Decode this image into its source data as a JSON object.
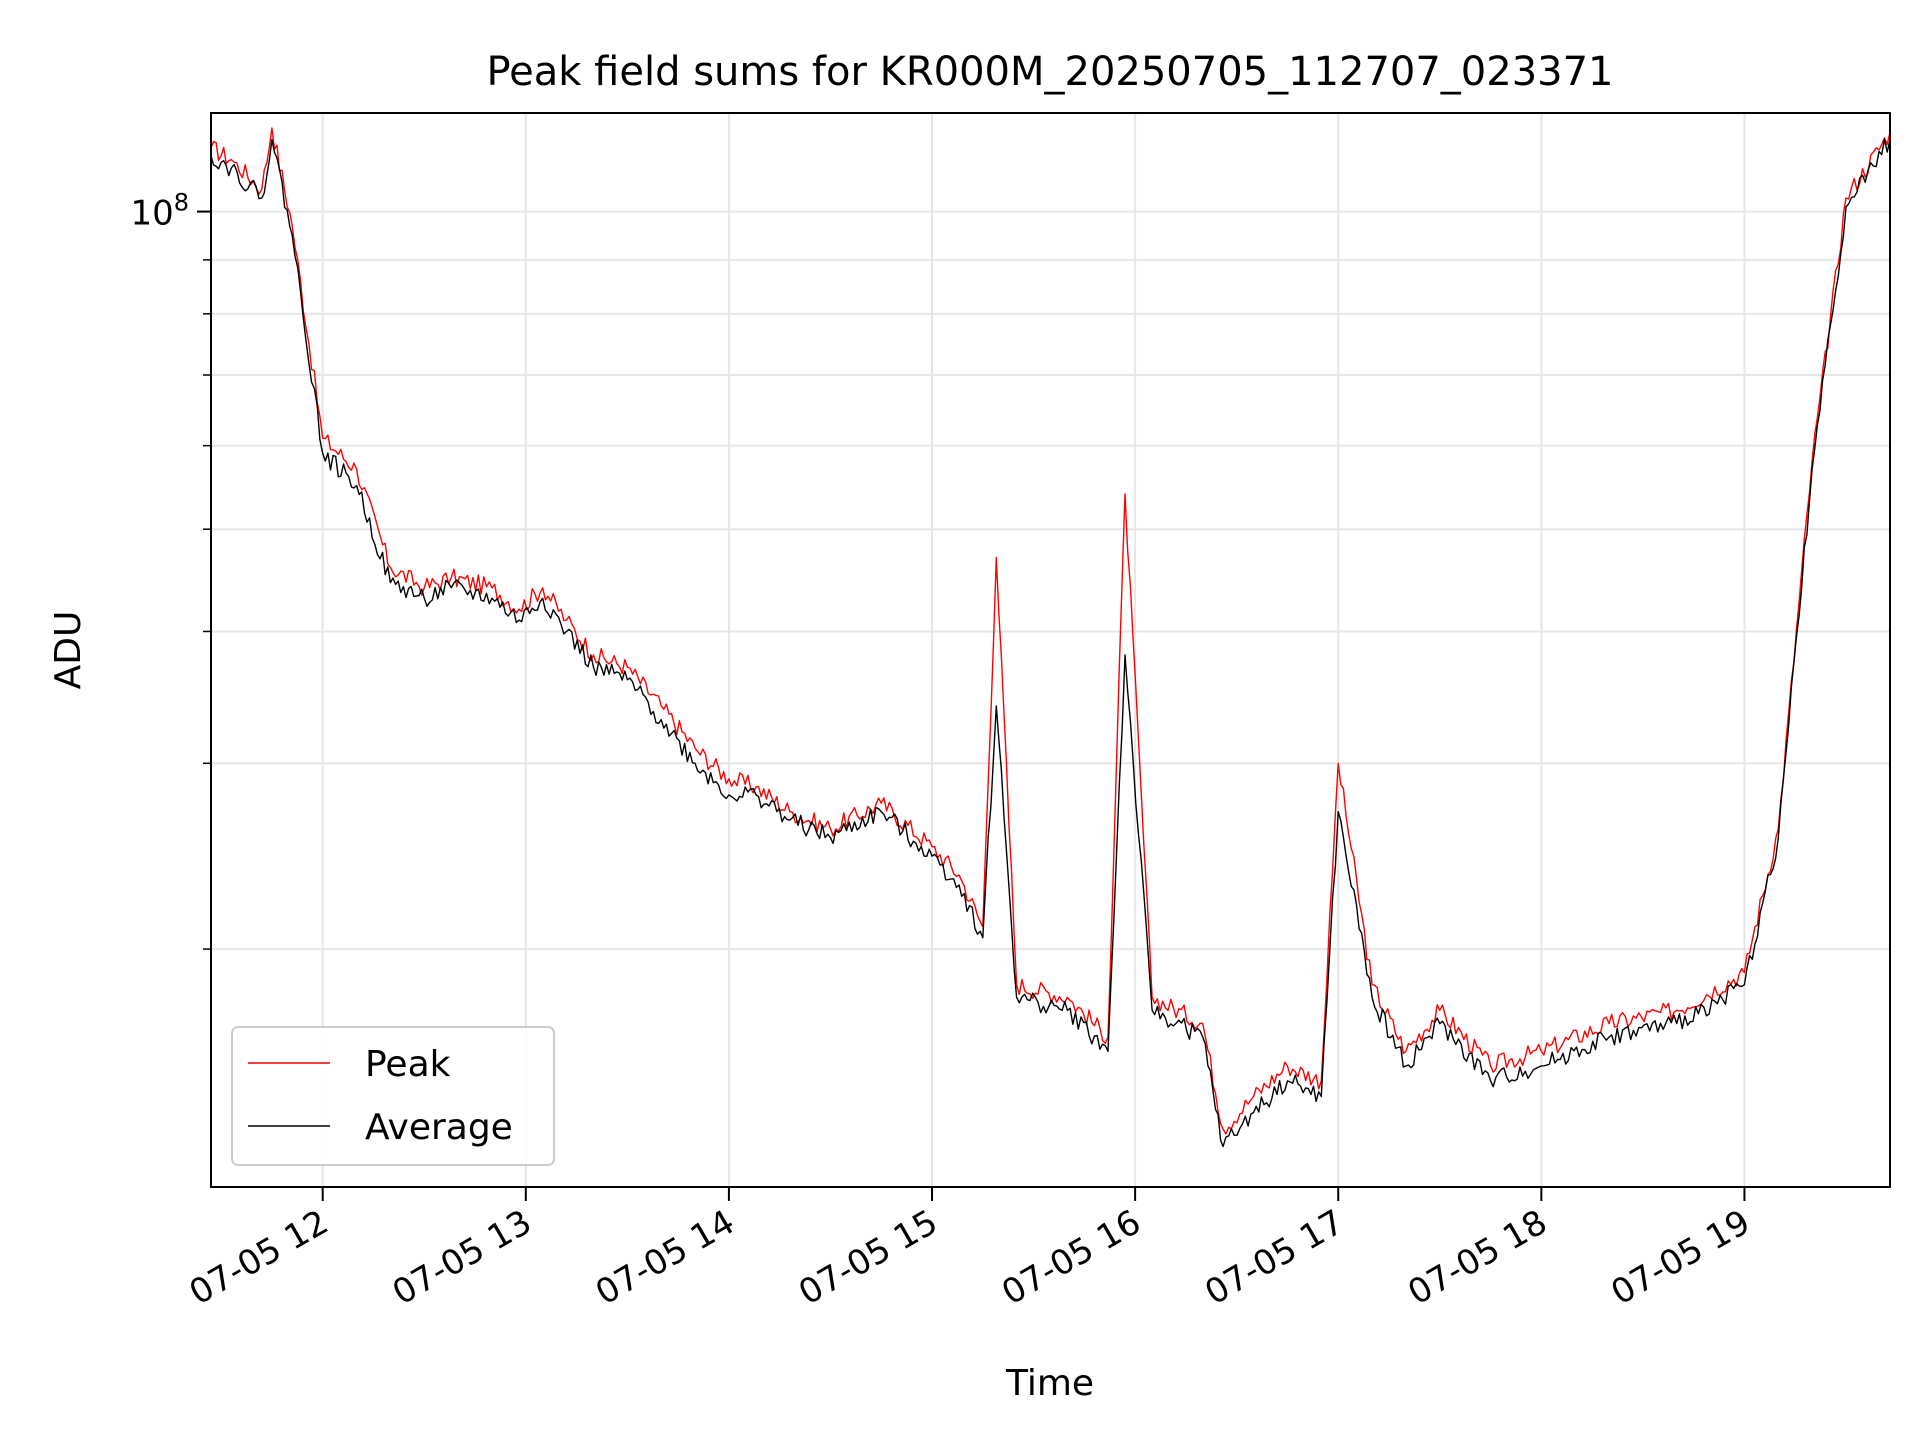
{
  "chart_data": {
    "type": "line",
    "title": "Peak field sums for KR000M_20250705_112707_023371",
    "xlabel": "Time",
    "ylabel": "ADU",
    "y_scale": "log",
    "ylim": [
      11900000,
      124000000
    ],
    "x_range": [
      "07-05 11:27",
      "07-05 19:43"
    ],
    "xticks": [
      "07-05 12",
      "07-05 13",
      "07-05 14",
      "07-05 15",
      "07-05 16",
      "07-05 17",
      "07-05 18",
      "07-05 19"
    ],
    "yticks": [
      "10^8"
    ],
    "grid": true,
    "legend_position": "lower left",
    "series": [
      {
        "name": "Peak",
        "color": "#ff0000",
        "x": [
          "07-05 11:27",
          "07-05 11:33",
          "07-05 11:42",
          "07-05 11:45",
          "07-05 11:51",
          "07-05 12:00",
          "07-05 12:10",
          "07-05 12:20",
          "07-05 12:30",
          "07-05 12:38",
          "07-05 12:50",
          "07-05 12:58",
          "07-05 13:05",
          "07-05 13:12",
          "07-05 13:20",
          "07-05 13:30",
          "07-05 13:40",
          "07-05 13:50",
          "07-05 14:00",
          "07-05 14:08",
          "07-05 14:18",
          "07-05 14:30",
          "07-05 14:45",
          "07-05 15:00",
          "07-05 15:08",
          "07-05 15:15",
          "07-05 15:19",
          "07-05 15:25",
          "07-05 15:40",
          "07-05 15:52",
          "07-05 15:57",
          "07-05 16:05",
          "07-05 16:20",
          "07-05 16:26",
          "07-05 16:35",
          "07-05 16:45",
          "07-05 16:55",
          "07-05 17:00",
          "07-05 17:10",
          "07-05 17:20",
          "07-05 17:30",
          "07-05 17:45",
          "07-05 18:00",
          "07-05 18:20",
          "07-05 18:40",
          "07-05 19:00",
          "07-05 19:10",
          "07-05 19:20",
          "07-05 19:30",
          "07-05 19:43"
        ],
        "values": [
          115000000,
          112000000,
          105000000,
          120000000,
          97000000,
          61000000,
          57000000,
          46000000,
          44000000,
          45000000,
          44000000,
          42000000,
          44000000,
          41000000,
          38000000,
          37000000,
          34000000,
          31000000,
          29000000,
          28500000,
          27000000,
          26000000,
          27500000,
          25000000,
          23500000,
          21000000,
          47000000,
          18500000,
          18000000,
          16500000,
          54000000,
          18000000,
          17000000,
          13500000,
          14500000,
          15500000,
          15000000,
          30000000,
          18500000,
          16000000,
          17500000,
          15500000,
          16000000,
          17000000,
          17500000,
          19000000,
          26000000,
          58000000,
          103000000,
          119000000
        ]
      },
      {
        "name": "Average",
        "color": "#000000",
        "x": [
          "07-05 11:27",
          "07-05 11:33",
          "07-05 11:42",
          "07-05 11:45",
          "07-05 11:51",
          "07-05 12:00",
          "07-05 12:10",
          "07-05 12:20",
          "07-05 12:30",
          "07-05 12:38",
          "07-05 12:50",
          "07-05 12:58",
          "07-05 13:05",
          "07-05 13:12",
          "07-05 13:20",
          "07-05 13:30",
          "07-05 13:40",
          "07-05 13:50",
          "07-05 14:00",
          "07-05 14:08",
          "07-05 14:18",
          "07-05 14:30",
          "07-05 14:45",
          "07-05 15:00",
          "07-05 15:08",
          "07-05 15:15",
          "07-05 15:19",
          "07-05 15:25",
          "07-05 15:40",
          "07-05 15:52",
          "07-05 15:57",
          "07-05 16:05",
          "07-05 16:20",
          "07-05 16:26",
          "07-05 16:35",
          "07-05 16:45",
          "07-05 16:55",
          "07-05 17:00",
          "07-05 17:10",
          "07-05 17:20",
          "07-05 17:30",
          "07-05 17:45",
          "07-05 18:00",
          "07-05 18:20",
          "07-05 18:40",
          "07-05 19:00",
          "07-05 19:10",
          "07-05 19:20",
          "07-05 19:30",
          "07-05 19:43"
        ],
        "values": [
          113000000,
          110000000,
          103000000,
          117000000,
          95000000,
          59000000,
          55000000,
          44500000,
          43000000,
          44000000,
          43000000,
          41000000,
          43000000,
          40000000,
          37000000,
          36000000,
          33000000,
          30000000,
          28000000,
          28000000,
          26500000,
          25500000,
          27000000,
          24500000,
          23000000,
          20500000,
          34000000,
          18000000,
          17500000,
          16000000,
          38000000,
          17500000,
          16500000,
          13000000,
          14000000,
          15000000,
          14500000,
          27000000,
          18000000,
          15500000,
          17000000,
          15000000,
          15500000,
          16500000,
          17000000,
          18500000,
          25500000,
          57000000,
          101000000,
          117000000
        ]
      }
    ]
  }
}
